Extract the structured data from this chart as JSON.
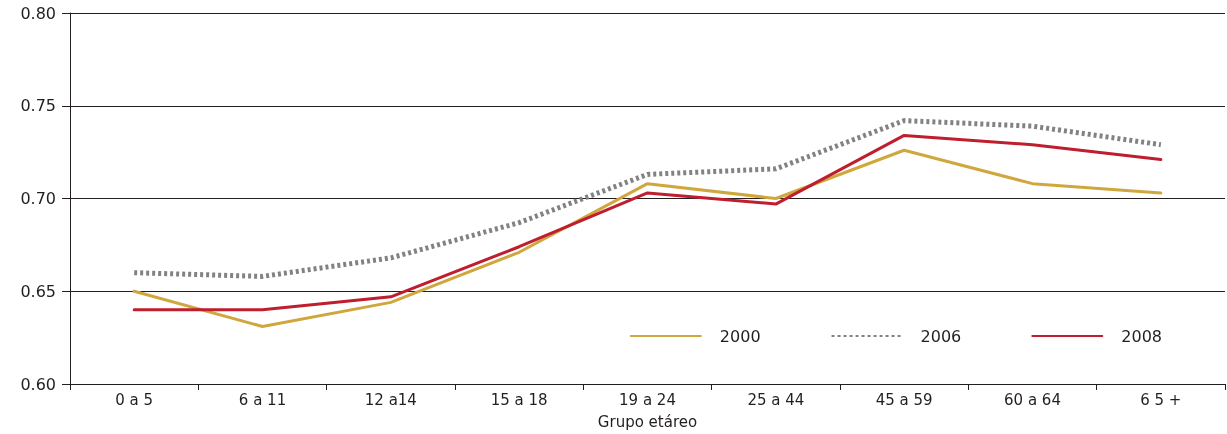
{
  "chart_data": {
    "type": "line",
    "xlabel": "Grupo etáreo",
    "categories": [
      "0 a 5",
      "6 a 11",
      "12 a14",
      "15 a 18",
      "19 a 24",
      "25 a 44",
      "45 a 59",
      "60 a 64",
      "6 5 +"
    ],
    "series": [
      {
        "name": "2000",
        "color": "#cfa73d",
        "line_style": "solid",
        "values": [
          0.65,
          0.631,
          0.644,
          0.671,
          0.708,
          0.7,
          0.726,
          0.708,
          0.703
        ]
      },
      {
        "name": "2006",
        "color": "#808285",
        "line_style": "dotted",
        "values": [
          0.66,
          0.658,
          0.668,
          0.687,
          0.713,
          0.716,
          0.742,
          0.739,
          0.729
        ]
      },
      {
        "name": "2008",
        "color": "#be1e2d",
        "line_style": "solid",
        "values": [
          0.64,
          0.64,
          0.647,
          0.674,
          0.703,
          0.697,
          0.734,
          0.729,
          0.721
        ]
      }
    ],
    "ylim": [
      0.6,
      0.8
    ],
    "yticks": [
      {
        "value": 0.6,
        "label": "0.60"
      },
      0.65,
      {
        "value": 0.7,
        "label": "0.70"
      },
      0.75,
      {
        "value": 0.8,
        "label": "0.80"
      }
    ],
    "grid": "y",
    "legend": "bottom right",
    "marker": "none"
  }
}
